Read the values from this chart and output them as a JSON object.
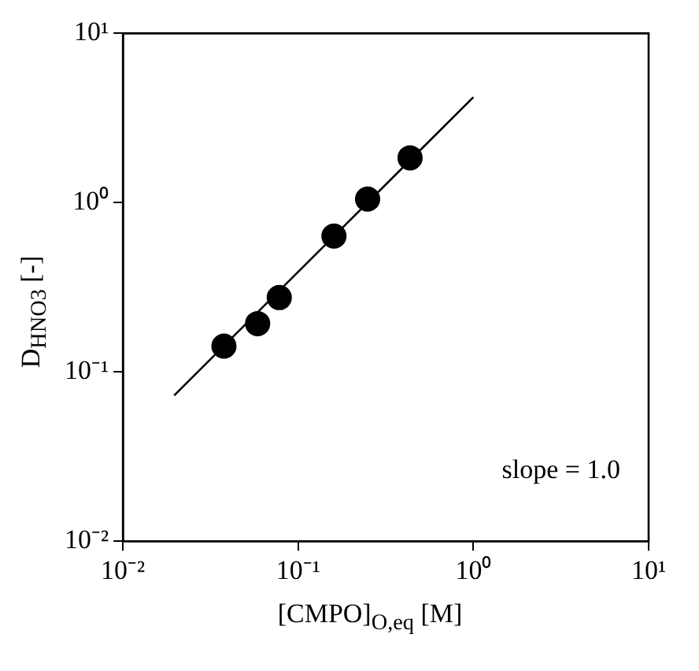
{
  "chart_data": {
    "type": "scatter",
    "xlabel": "[CMPO]$_{O,eq}$ [M]",
    "ylabel": "D$_{HNO3}$ [-]",
    "log": "xy",
    "grid": false,
    "legend": false,
    "marker": "circle",
    "xlim": [
      0.01,
      10
    ],
    "ylim": [
      0.01,
      10
    ],
    "xticks": [
      {
        "value": 0.01,
        "label": "10⁻²"
      },
      {
        "value": 0.1,
        "label": "10⁻¹"
      },
      {
        "value": 1,
        "label": "10⁰"
      },
      {
        "value": 10,
        "label": "10¹"
      }
    ],
    "yticks": [
      {
        "value": 0.01,
        "label": "10⁻²"
      },
      {
        "value": 0.1,
        "label": "10⁻¹"
      },
      {
        "value": 1,
        "label": "10⁰"
      },
      {
        "value": 10,
        "label": "10¹"
      }
    ],
    "series": [
      {
        "type": "scatter",
        "color": "#000000",
        "x": [
          0.0377,
          0.0587,
          0.078,
          0.16,
          0.249,
          0.435
        ],
        "values": [
          0.142,
          0.193,
          0.275,
          0.635,
          1.05,
          1.84
        ]
      },
      {
        "type": "line",
        "color": "#000000",
        "line_style": "solid",
        "marker": "none",
        "x": [
          0.0196,
          1.0
        ],
        "values": [
          0.0726,
          4.2
        ]
      }
    ],
    "annotations": [
      "slope = 1.0"
    ]
  }
}
